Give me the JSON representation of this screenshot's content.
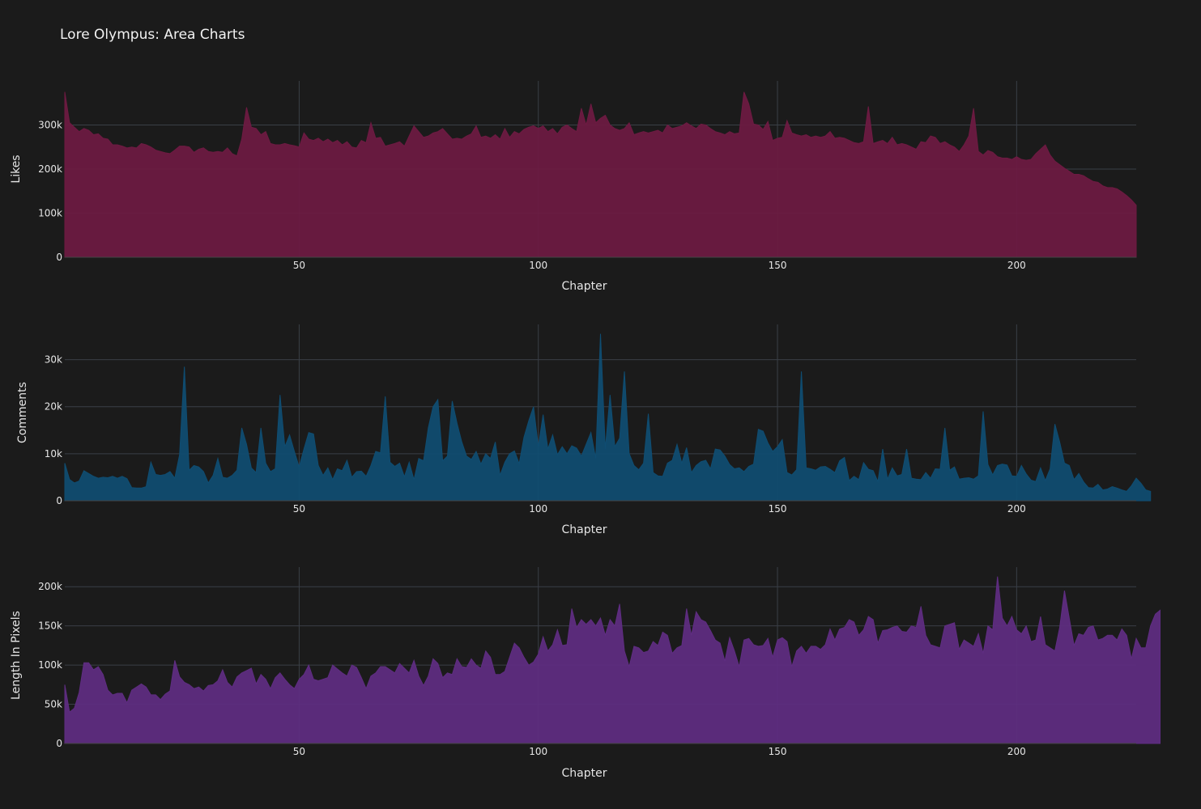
{
  "title": "Lore Olympus: Area Charts",
  "colors": {
    "background": "#1b1b1b",
    "grid": "#3a3f47"
  },
  "chart_data": [
    {
      "type": "area",
      "xlabel": "Chapter",
      "ylabel": "Likes",
      "xlim": [
        1,
        225
      ],
      "ylim": [
        0,
        400000
      ],
      "x_ticks": [
        50,
        100,
        150,
        200
      ],
      "y_ticks": [
        0,
        100000,
        200000,
        300000
      ],
      "y_tick_labels": [
        "0",
        "100k",
        "200k",
        "300k"
      ],
      "fill_color": "#6e1a42",
      "line_color": "#6e1a42",
      "grid": true,
      "series": [
        {
          "values": [
            375000,
            305000,
            295000,
            285000,
            292000,
            288000,
            278000,
            280000,
            270000,
            268000,
            255000,
            255000,
            252000,
            248000,
            250000,
            248000,
            258000,
            255000,
            250000,
            243000,
            240000,
            237000,
            235000,
            243000,
            252000,
            252000,
            250000,
            238000,
            245000,
            248000,
            240000,
            238000,
            240000,
            238000,
            248000,
            235000,
            230000,
            268000,
            340000,
            295000,
            292000,
            278000,
            285000,
            258000,
            255000,
            255000,
            258000,
            255000,
            253000,
            250000,
            282000,
            268000,
            265000,
            270000,
            262000,
            268000,
            260000,
            265000,
            255000,
            262000,
            250000,
            248000,
            265000,
            260000,
            305000,
            270000,
            272000,
            252000,
            255000,
            258000,
            262000,
            252000,
            275000,
            298000,
            285000,
            272000,
            275000,
            282000,
            285000,
            292000,
            280000,
            268000,
            270000,
            268000,
            275000,
            280000,
            298000,
            272000,
            275000,
            270000,
            278000,
            268000,
            292000,
            272000,
            285000,
            280000,
            290000,
            295000,
            298000,
            292000,
            298000,
            285000,
            292000,
            280000,
            295000,
            300000,
            292000,
            285000,
            338000,
            300000,
            348000,
            305000,
            315000,
            322000,
            300000,
            292000,
            288000,
            292000,
            305000,
            278000,
            282000,
            285000,
            282000,
            285000,
            288000,
            282000,
            300000,
            292000,
            295000,
            298000,
            305000,
            298000,
            292000,
            302000,
            300000,
            292000,
            285000,
            282000,
            278000,
            285000,
            280000,
            282000,
            375000,
            348000,
            302000,
            300000,
            290000,
            308000,
            265000,
            270000,
            272000,
            310000,
            282000,
            278000,
            275000,
            278000,
            272000,
            275000,
            272000,
            275000,
            285000,
            270000,
            272000,
            270000,
            265000,
            260000,
            258000,
            262000,
            342000,
            258000,
            262000,
            265000,
            258000,
            272000,
            255000,
            258000,
            255000,
            250000,
            245000,
            262000,
            260000,
            275000,
            272000,
            258000,
            262000,
            255000,
            250000,
            240000,
            255000,
            275000,
            338000,
            240000,
            232000,
            242000,
            238000,
            228000,
            225000,
            225000,
            222000,
            228000,
            222000,
            220000,
            222000,
            235000,
            245000,
            255000,
            232000,
            218000,
            210000,
            202000,
            195000,
            188000,
            188000,
            185000,
            178000,
            172000,
            170000,
            162000,
            158000,
            158000,
            155000,
            148000,
            140000,
            130000,
            118000
          ]
        }
      ]
    },
    {
      "type": "area",
      "xlabel": "Chapter",
      "ylabel": "Comments",
      "xlim": [
        1,
        225
      ],
      "ylim": [
        0,
        37500
      ],
      "x_ticks": [
        50,
        100,
        150,
        200
      ],
      "y_ticks": [
        0,
        10000,
        20000,
        30000
      ],
      "y_tick_labels": [
        "0",
        "10k",
        "20k",
        "30k"
      ],
      "fill_color": "#0f4d72",
      "line_color": "#0f4d72",
      "grid": true,
      "series": [
        {
          "values": [
            8000,
            4500,
            3800,
            4200,
            6400,
            5800,
            5200,
            4800,
            5000,
            4900,
            5200,
            4800,
            5200,
            4700,
            2800,
            2700,
            2700,
            3000,
            8200,
            5600,
            5400,
            5600,
            6200,
            4800,
            9800,
            28500,
            6500,
            7500,
            7200,
            6200,
            3800,
            5400,
            9000,
            5000,
            4800,
            5400,
            6500,
            15500,
            12000,
            7000,
            6000,
            15500,
            8000,
            6200,
            6800,
            22500,
            11500,
            14000,
            10500,
            7200,
            11000,
            14500,
            14200,
            7500,
            5400,
            7000,
            4500,
            6800,
            6400,
            8600,
            5000,
            6200,
            6300,
            5200,
            7500,
            10500,
            10200,
            22200,
            8200,
            7300,
            8000,
            5100,
            8200,
            4500,
            9000,
            8500,
            15500,
            20000,
            21500,
            8500,
            9500,
            21200,
            16500,
            12500,
            9500,
            8800,
            10500,
            7800,
            10000,
            9000,
            12500,
            5400,
            8200,
            10000,
            10600,
            7900,
            13500,
            17000,
            20000,
            11500,
            18300,
            11000,
            14000,
            9800,
            11500,
            10000,
            11700,
            11200,
            9500,
            12000,
            14500,
            9000,
            35500,
            11000,
            22500,
            11500,
            13300,
            27500,
            10000,
            7500,
            6600,
            8000,
            18500,
            6000,
            5300,
            5200,
            8000,
            8600,
            12000,
            8000,
            11300,
            6000,
            7500,
            8300,
            8600,
            6800,
            11000,
            10800,
            9500,
            7700,
            6800,
            7000,
            6200,
            7300,
            7800,
            15200,
            14800,
            12300,
            10500,
            11500,
            13000,
            6000,
            5500,
            6600,
            27500,
            7000,
            6800,
            6500,
            7200,
            7300,
            6700,
            6000,
            8500,
            9200,
            4300,
            5200,
            4500,
            8100,
            6700,
            6400,
            4100,
            11000,
            4600,
            7000,
            5300,
            5600,
            11000,
            4800,
            4600,
            4500,
            6000,
            4800,
            6800,
            6700,
            15500,
            6500,
            7200,
            4600,
            4800,
            4900,
            4600,
            5300,
            19000,
            7700,
            5500,
            7500,
            7800,
            7600,
            5300,
            5200,
            7500,
            5700,
            4400,
            4100,
            7000,
            4300,
            6800,
            16300,
            12500,
            8000,
            7500,
            4500,
            5800,
            4000,
            2800,
            2700,
            3500,
            2300,
            2500,
            3000,
            2700,
            2300,
            2000,
            3200,
            4800,
            3700,
            2300,
            2000
          ]
        }
      ]
    },
    {
      "type": "area",
      "xlabel": "Chapter",
      "ylabel": "Length In Pixels",
      "xlim": [
        1,
        225
      ],
      "ylim": [
        0,
        225000
      ],
      "x_ticks": [
        50,
        100,
        150,
        200
      ],
      "y_ticks": [
        0,
        50000,
        100000,
        150000,
        200000
      ],
      "y_tick_labels": [
        "0",
        "50k",
        "100k",
        "150k",
        "200k"
      ],
      "fill_color": "#5f2d82",
      "line_color": "#5f2d82",
      "grid": true,
      "series": [
        {
          "values": [
            75000,
            40000,
            45000,
            65000,
            103000,
            103000,
            94000,
            98000,
            88000,
            68000,
            62000,
            64000,
            64000,
            52000,
            68000,
            72000,
            76000,
            72000,
            62000,
            62000,
            56000,
            63000,
            67000,
            106000,
            85000,
            78000,
            75000,
            70000,
            72000,
            67000,
            74000,
            75000,
            80000,
            94000,
            78000,
            72000,
            85000,
            90000,
            93000,
            96000,
            76000,
            88000,
            82000,
            70000,
            84000,
            90000,
            82000,
            75000,
            70000,
            82000,
            88000,
            100000,
            82000,
            80000,
            82000,
            84000,
            100000,
            95000,
            90000,
            86000,
            100000,
            97000,
            84000,
            70000,
            86000,
            90000,
            98000,
            98000,
            94000,
            90000,
            102000,
            96000,
            90000,
            106000,
            86000,
            74000,
            86000,
            108000,
            102000,
            84000,
            90000,
            88000,
            108000,
            98000,
            97000,
            108000,
            100000,
            96000,
            118000,
            110000,
            88000,
            88000,
            92000,
            110000,
            128000,
            122000,
            110000,
            100000,
            104000,
            114000,
            136000,
            118000,
            126000,
            145000,
            125000,
            126000,
            172000,
            148000,
            158000,
            152000,
            158000,
            150000,
            160000,
            138000,
            158000,
            150000,
            178000,
            118000,
            98000,
            124000,
            122000,
            116000,
            118000,
            130000,
            125000,
            142000,
            138000,
            115000,
            122000,
            125000,
            172000,
            138000,
            168000,
            158000,
            155000,
            144000,
            132000,
            128000,
            105000,
            135000,
            118000,
            98000,
            132000,
            134000,
            126000,
            124000,
            125000,
            134000,
            110000,
            132000,
            135000,
            130000,
            98000,
            118000,
            124000,
            115000,
            124000,
            124000,
            120000,
            126000,
            146000,
            132000,
            146000,
            148000,
            158000,
            155000,
            138000,
            145000,
            162000,
            158000,
            128000,
            144000,
            145000,
            148000,
            150000,
            143000,
            142000,
            150000,
            148000,
            175000,
            138000,
            126000,
            124000,
            122000,
            150000,
            152000,
            154000,
            120000,
            132000,
            128000,
            124000,
            140000,
            115000,
            150000,
            145000,
            213000,
            160000,
            150000,
            162000,
            145000,
            140000,
            150000,
            130000,
            132000,
            162000,
            126000,
            122000,
            118000,
            148000,
            195000,
            160000,
            125000,
            140000,
            138000,
            148000,
            150000,
            132000,
            134000,
            138000,
            138000,
            132000,
            146000,
            138000,
            108000,
            134000,
            122000,
            122000,
            150000,
            165000,
            170000
          ]
        }
      ]
    }
  ]
}
